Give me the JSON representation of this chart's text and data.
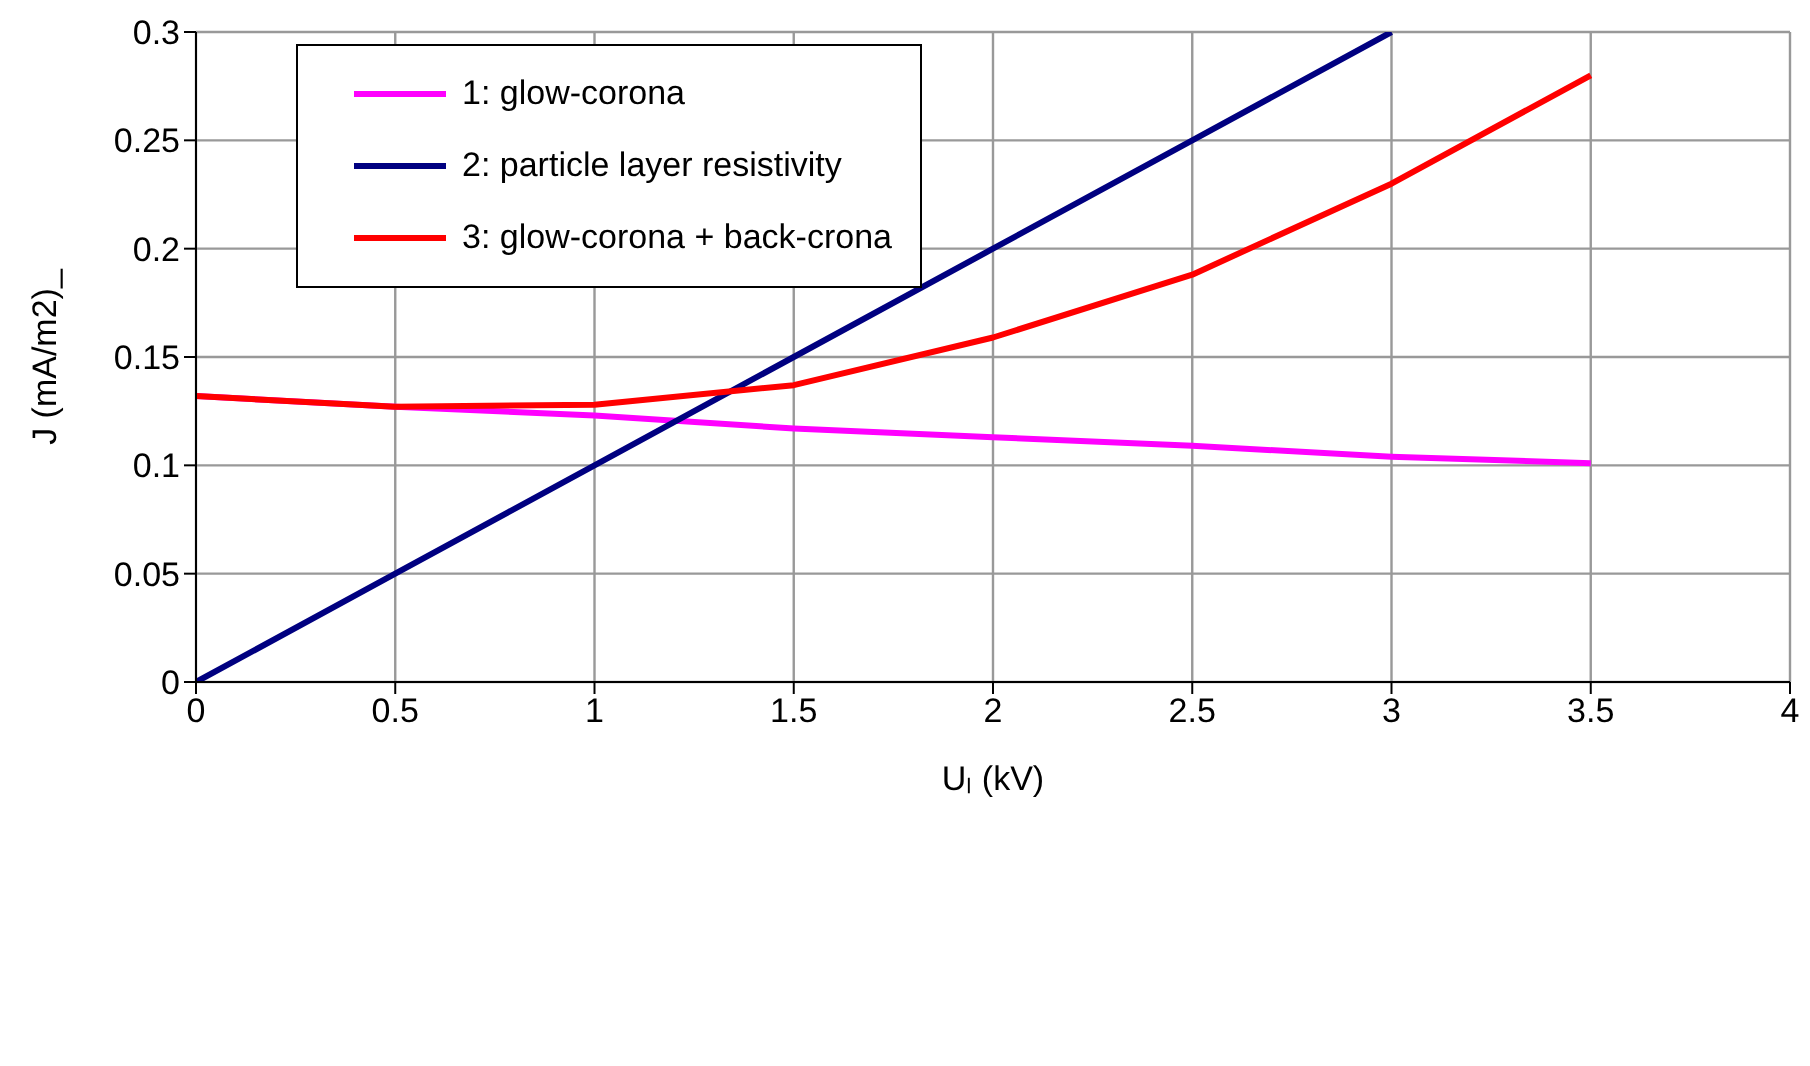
{
  "chart_data": {
    "type": "line",
    "xlabel": "Uₗ (kV)",
    "ylabel": "J (mA/m2)_",
    "xlim": [
      0,
      4
    ],
    "xticks": [
      0,
      0.5,
      1,
      1.5,
      2,
      2.5,
      3,
      3.5,
      4
    ],
    "ylim": [
      0,
      0.3
    ],
    "yticks": [
      0,
      0.05,
      0.1,
      0.15,
      0.2,
      0.25,
      0.3
    ],
    "grid": true,
    "legend": "top left",
    "marker": "none",
    "line_style": "solid",
    "series": [
      {
        "name": "1: glow-corona",
        "color": "#ff00ff",
        "x": [
          0,
          0.5,
          1,
          1.5,
          2,
          2.5,
          3,
          3.5
        ],
        "values": [
          0.132,
          0.127,
          0.123,
          0.117,
          0.113,
          0.109,
          0.104,
          0.101
        ]
      },
      {
        "name": "2: particle layer resistivity",
        "color": "#000080",
        "x": [
          0,
          0.5,
          1,
          1.5,
          2,
          2.5,
          3
        ],
        "values": [
          0,
          0.05,
          0.1,
          0.15,
          0.2,
          0.25,
          0.3
        ]
      },
      {
        "name": "3: glow-corona + back-crona",
        "color": "#ff0000",
        "x": [
          0,
          0.5,
          1,
          1.5,
          2,
          2.5,
          3,
          3.5
        ],
        "values": [
          0.132,
          0.127,
          0.128,
          0.137,
          0.159,
          0.188,
          0.23,
          0.28
        ]
      }
    ]
  }
}
